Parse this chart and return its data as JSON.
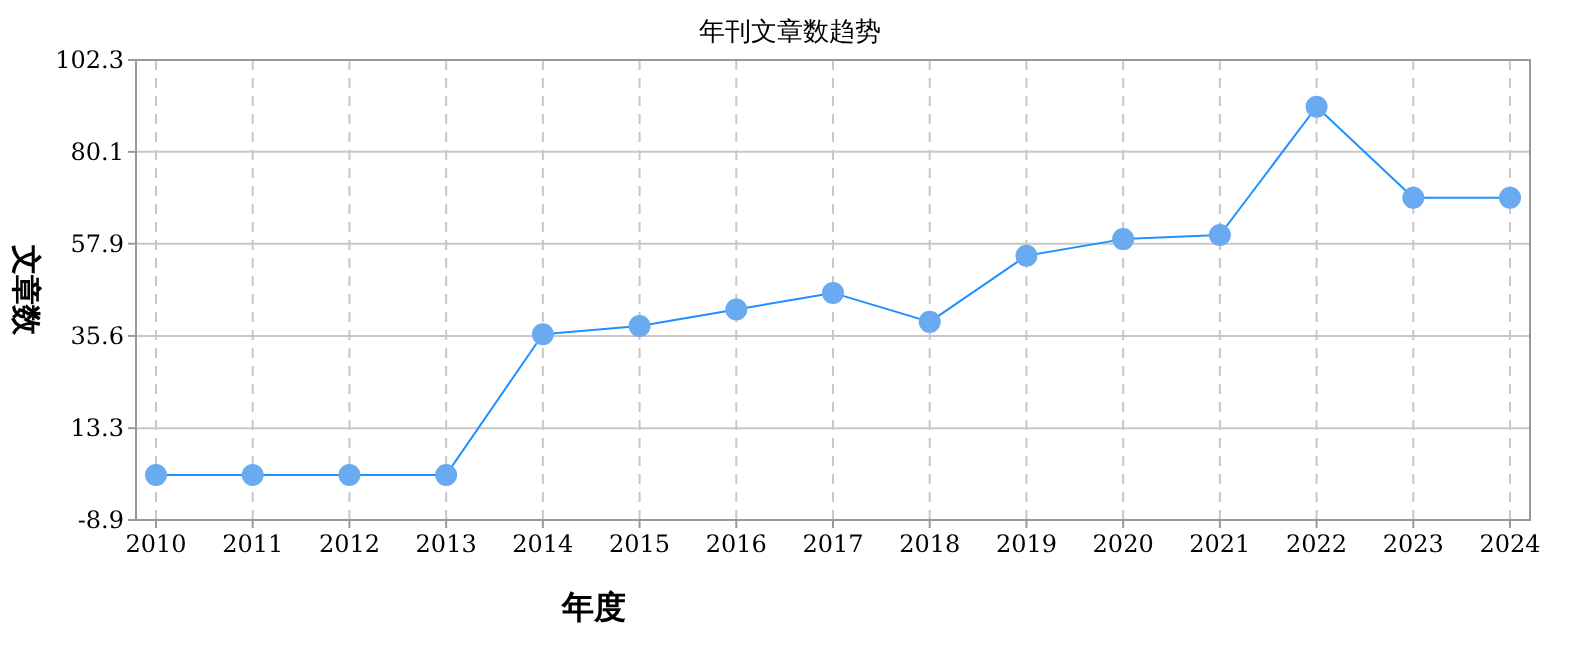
{
  "chart_data": {
    "type": "line",
    "title": "年刊文章数趋势",
    "xlabel": "年度",
    "ylabel": "文章数",
    "categories": [
      "2010",
      "2011",
      "2012",
      "2013",
      "2014",
      "2015",
      "2016",
      "2017",
      "2018",
      "2019",
      "2020",
      "2021",
      "2022",
      "2023",
      "2024"
    ],
    "series": [
      {
        "color": "#1e90ff",
        "values": [
          2,
          2,
          2,
          2,
          36,
          38,
          42,
          46,
          39,
          55,
          59,
          60,
          91,
          69,
          69
        ]
      }
    ],
    "ylim": [
      -8.9,
      102.3
    ],
    "yticks": [
      -8.9,
      13.3,
      35.6,
      57.9,
      80.1,
      102.3
    ],
    "grid": true,
    "marker": "circle",
    "line_style": "solid"
  }
}
